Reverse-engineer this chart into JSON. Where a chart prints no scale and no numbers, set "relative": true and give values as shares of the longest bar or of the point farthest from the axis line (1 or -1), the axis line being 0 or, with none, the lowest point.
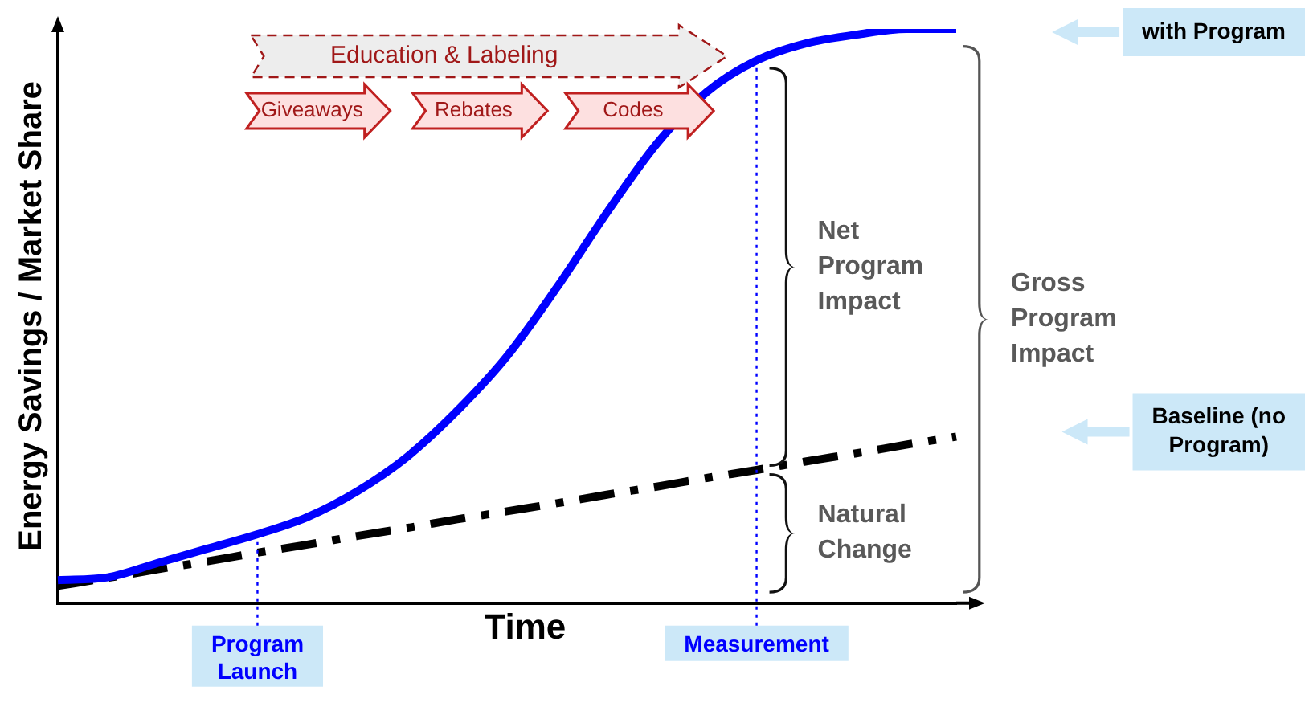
{
  "chart_data": {
    "type": "line",
    "relative": true,
    "ylabel": "Energy Savings / Market Share",
    "xlabel": "Time",
    "categories": [
      null,
      null,
      null,
      null,
      "Program Launch",
      null,
      null,
      null,
      null,
      null,
      null,
      null,
      null,
      null,
      "Measurement",
      null,
      null,
      null,
      null
    ],
    "series": [
      {
        "name": "with Program",
        "color": "#0000ff",
        "line_style": "solid",
        "values": [
          0.04,
          0.045,
          0.07,
          0.095,
          0.12,
          0.15,
          0.195,
          0.255,
          0.335,
          0.43,
          0.55,
          0.68,
          0.8,
          0.89,
          0.945,
          0.975,
          0.99,
          1.0,
          1.0
        ]
      },
      {
        "name": "Baseline (no Program)",
        "color": "#000000",
        "line_style": "dashed",
        "values": [
          0.03,
          0.044,
          0.059,
          0.073,
          0.088,
          0.102,
          0.117,
          0.131,
          0.146,
          0.16,
          0.174,
          0.189,
          0.203,
          0.218,
          0.232,
          0.247,
          0.261,
          0.276,
          0.29
        ]
      }
    ],
    "ref_lines": [
      {
        "axis": "x",
        "value": "Program Launch",
        "color": "#0000ff",
        "line_style": "dotted"
      },
      {
        "axis": "x",
        "value": "Measurement",
        "color": "#0000ff",
        "line_style": "dotted"
      }
    ],
    "annotations": [
      "Education & Labeling",
      "Giveaways",
      "Rebates",
      "Codes",
      "Net Program Impact",
      "Natural Change",
      "Gross Program Impact"
    ],
    "marker": "none",
    "grid": false,
    "legend": false
  }
}
